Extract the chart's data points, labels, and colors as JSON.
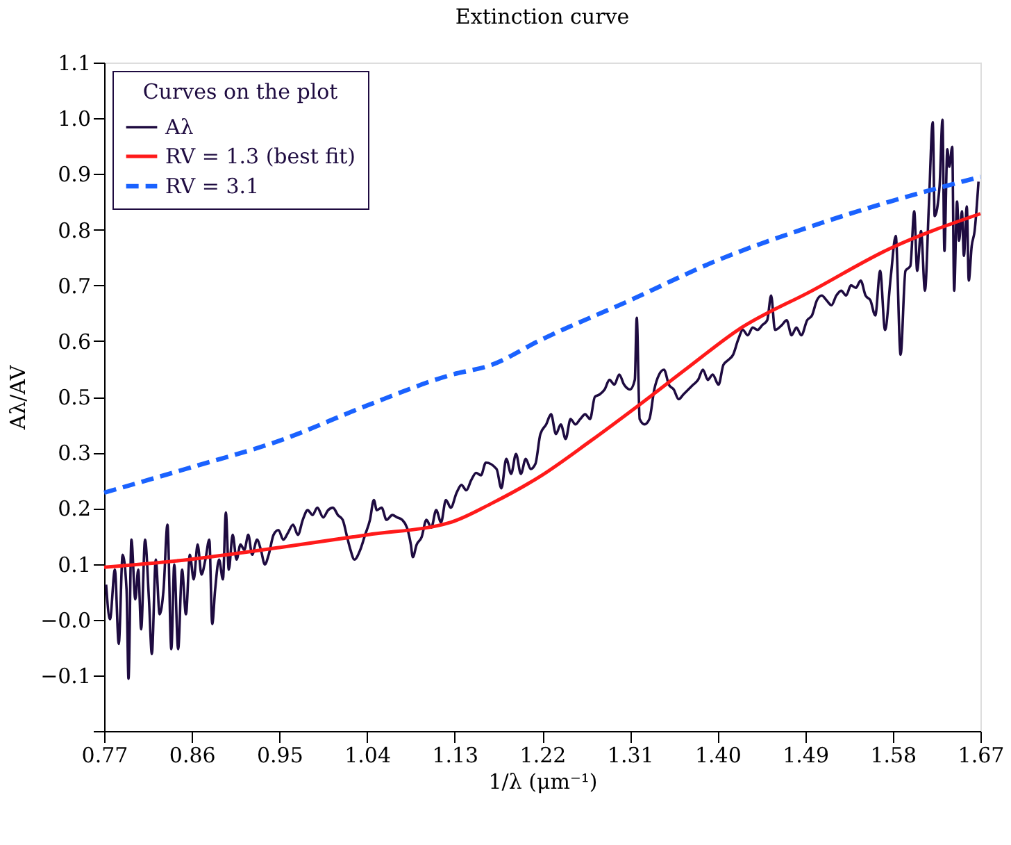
{
  "chart_data": {
    "type": "line",
    "title": "Extinction curve",
    "xlabel": "1/λ (μm⁻¹)",
    "ylabel": "Aλ/AV",
    "legend_title": "Curves on the plot",
    "legend": "top left",
    "xlim": [
      0.77,
      1.67
    ],
    "xticks": [
      0.77,
      0.86,
      0.95,
      1.04,
      1.13,
      1.22,
      1.31,
      {
        "value": 1.4,
        "label": "1.40"
      },
      1.49,
      1.58,
      1.67
    ],
    "ylim": [
      -0.235,
      1.145
    ],
    "yticks": [
      {
        "value": 1.145,
        "label": "1.1"
      },
      {
        "value": 1.03,
        "label": "1.0"
      },
      {
        "value": 0.915,
        "label": "0.9"
      },
      {
        "value": 0.8,
        "label": "0.8"
      },
      {
        "value": 0.685,
        "label": "0.7"
      },
      {
        "value": 0.57,
        "label": "0.6"
      },
      {
        "value": 0.455,
        "label": "0.5"
      },
      {
        "value": 0.34,
        "label": "0.3"
      },
      {
        "value": 0.225,
        "label": "0.2"
      },
      {
        "value": 0.11,
        "label": "0.1"
      },
      {
        "value": -0.005,
        "label": "−0.0"
      },
      {
        "value": -0.12,
        "label": "−0.1"
      },
      {
        "value": -0.235,
        "label": null
      }
    ],
    "series": [
      {
        "name": "Aλ",
        "color": "#1e0b40",
        "line_style": "solid",
        "x": [
          0.772,
          0.776,
          0.781,
          0.785,
          0.789,
          0.793,
          0.795,
          0.798,
          0.802,
          0.805,
          0.808,
          0.812,
          0.816,
          0.819,
          0.823,
          0.827,
          0.831,
          0.835,
          0.839,
          0.842,
          0.846,
          0.85,
          0.854,
          0.858,
          0.862,
          0.866,
          0.87,
          0.874,
          0.878,
          0.881,
          0.884,
          0.888,
          0.892,
          0.895,
          0.898,
          0.902,
          0.906,
          0.91,
          0.914,
          0.918,
          0.922,
          0.927,
          0.931,
          0.935,
          0.939,
          0.944,
          0.949,
          0.954,
          0.959,
          0.964,
          0.969,
          0.974,
          0.979,
          0.984,
          0.989,
          0.995,
          1.0,
          1.005,
          1.01,
          1.015,
          1.019,
          1.023,
          1.027,
          1.033,
          1.038,
          1.043,
          1.047,
          1.05,
          1.055,
          1.06,
          1.066,
          1.071,
          1.076,
          1.081,
          1.085,
          1.087,
          1.091,
          1.096,
          1.101,
          1.106,
          1.111,
          1.116,
          1.121,
          1.126,
          1.132,
          1.137,
          1.142,
          1.147,
          1.152,
          1.157,
          1.162,
          1.173,
          1.178,
          1.183,
          1.188,
          1.193,
          1.198,
          1.203,
          1.208,
          1.213,
          1.218,
          1.224,
          1.229,
          1.234,
          1.239,
          1.244,
          1.249,
          1.254,
          1.259,
          1.264,
          1.269,
          1.274,
          1.279,
          1.284,
          1.289,
          1.294,
          1.299,
          1.304,
          1.31,
          1.315,
          1.317,
          1.32,
          1.325,
          1.33,
          1.335,
          1.34,
          1.345,
          1.35,
          1.355,
          1.36,
          1.365,
          1.37,
          1.375,
          1.38,
          1.385,
          1.39,
          1.395,
          1.401,
          1.406,
          1.411,
          1.416,
          1.421,
          1.426,
          1.431,
          1.436,
          1.441,
          1.446,
          1.451,
          1.455,
          1.459,
          1.466,
          1.471,
          1.476,
          1.481,
          1.486,
          1.492,
          1.497,
          1.502,
          1.507,
          1.512,
          1.517,
          1.522,
          1.527,
          1.532,
          1.537,
          1.542,
          1.547,
          1.552,
          1.557,
          1.562,
          1.567,
          1.572,
          1.578,
          1.583,
          1.588,
          1.593,
          1.598,
          1.602,
          1.605,
          1.609,
          1.613,
          1.617,
          1.621,
          1.623,
          1.628,
          1.631,
          1.633,
          1.636,
          1.638,
          1.641,
          1.643,
          1.646,
          1.648,
          1.651,
          1.653,
          1.656,
          1.658,
          1.661,
          1.664,
          1.668
        ],
        "values": [
          0.067,
          -0.004,
          0.098,
          -0.055,
          0.129,
          0.057,
          -0.127,
          0.16,
          0.037,
          0.098,
          -0.025,
          0.16,
          0.037,
          -0.076,
          0.119,
          0.006,
          0.057,
          0.191,
          -0.066,
          0.109,
          -0.066,
          0.098,
          0.006,
          0.129,
          0.078,
          0.15,
          0.088,
          0.119,
          0.16,
          -0.014,
          0.057,
          0.119,
          0.078,
          0.216,
          0.098,
          0.17,
          0.119,
          0.15,
          0.139,
          0.17,
          0.129,
          0.16,
          0.139,
          0.109,
          0.129,
          0.17,
          0.18,
          0.16,
          0.175,
          0.191,
          0.17,
          0.201,
          0.221,
          0.211,
          0.226,
          0.206,
          0.221,
          0.226,
          0.211,
          0.201,
          0.17,
          0.139,
          0.119,
          0.139,
          0.17,
          0.201,
          0.242,
          0.221,
          0.226,
          0.201,
          0.211,
          0.206,
          0.201,
          0.185,
          0.15,
          0.124,
          0.15,
          0.165,
          0.201,
          0.185,
          0.221,
          0.196,
          0.242,
          0.226,
          0.257,
          0.273,
          0.262,
          0.283,
          0.298,
          0.293,
          0.319,
          0.306,
          0.266,
          0.327,
          0.296,
          0.337,
          0.296,
          0.327,
          0.306,
          0.317,
          0.378,
          0.398,
          0.419,
          0.378,
          0.398,
          0.368,
          0.409,
          0.398,
          0.409,
          0.419,
          0.409,
          0.455,
          0.46,
          0.47,
          0.49,
          0.48,
          0.501,
          0.48,
          0.47,
          0.49,
          0.618,
          0.409,
          0.398,
          0.409,
          0.47,
          0.501,
          0.511,
          0.48,
          0.47,
          0.45,
          0.46,
          0.47,
          0.48,
          0.49,
          0.511,
          0.49,
          0.501,
          0.48,
          0.521,
          0.531,
          0.542,
          0.572,
          0.593,
          0.582,
          0.598,
          0.593,
          0.603,
          0.613,
          0.664,
          0.593,
          0.603,
          0.613,
          0.582,
          0.598,
          0.582,
          0.613,
          0.623,
          0.654,
          0.664,
          0.654,
          0.644,
          0.664,
          0.674,
          0.664,
          0.685,
          0.68,
          0.695,
          0.664,
          0.654,
          0.623,
          0.715,
          0.593,
          0.705,
          0.787,
          0.542,
          0.715,
          0.725,
          0.838,
          0.715,
          0.797,
          0.674,
          0.848,
          1.022,
          0.828,
          0.889,
          1.027,
          0.756,
          0.966,
          0.93,
          0.971,
          0.674,
          0.858,
          0.777,
          0.838,
          0.746,
          0.848,
          0.695,
          0.766,
          0.797,
          0.899
        ]
      },
      {
        "name": "RV = 1.3 (best fit)",
        "color": "#ff1a1a",
        "line_style": "solid",
        "x": [
          0.77,
          0.857,
          0.951,
          1.04,
          1.126,
          1.168,
          1.218,
          1.269,
          1.32,
          1.37,
          1.421,
          1.497,
          1.577,
          1.67
        ],
        "values": [
          0.103,
          0.119,
          0.144,
          0.17,
          0.196,
          0.235,
          0.291,
          0.363,
          0.439,
          0.516,
          0.593,
          0.674,
          0.761,
          0.833
        ]
      },
      {
        "name": "RV = 3.1",
        "color": "#1a62ff",
        "line_style": "dashed",
        "x": [
          0.77,
          0.857,
          0.951,
          1.04,
          1.126,
          1.168,
          1.218,
          1.31,
          1.399,
          1.489,
          1.577,
          1.67
        ],
        "values": [
          0.257,
          0.308,
          0.365,
          0.437,
          0.5,
          0.521,
          0.572,
          0.654,
          0.736,
          0.802,
          0.858,
          0.909
        ]
      }
    ]
  }
}
